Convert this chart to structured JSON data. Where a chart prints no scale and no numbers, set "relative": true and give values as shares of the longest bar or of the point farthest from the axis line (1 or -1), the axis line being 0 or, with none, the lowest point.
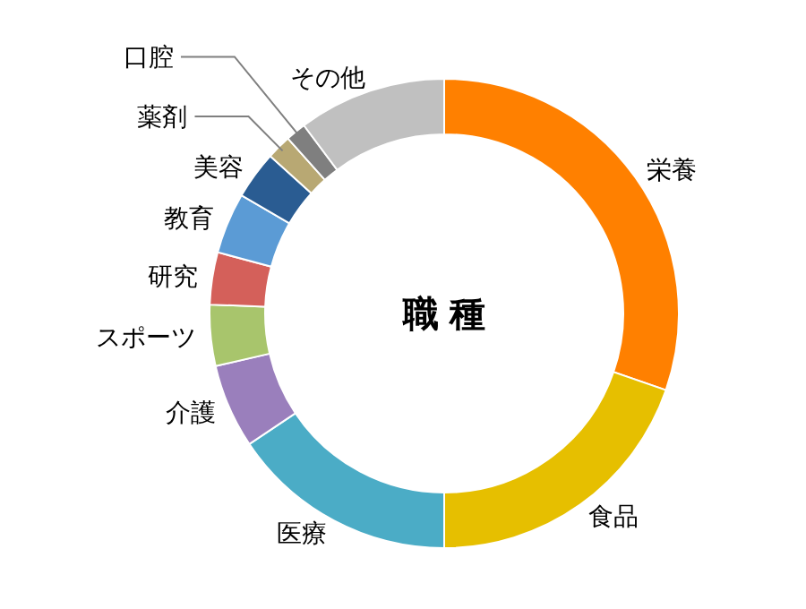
{
  "chart_data": {
    "type": "donut",
    "title": "職 種",
    "categories": [
      "栄養",
      "食品",
      "医療",
      "介護",
      "スポーツ",
      "研究",
      "教育",
      "美容",
      "薬剤",
      "口腔",
      "その他"
    ],
    "values": [
      30.3,
      19.7,
      15.6,
      5.8,
      4.2,
      3.6,
      4.2,
      3.3,
      1.7,
      1.4,
      10.2
    ],
    "colors": [
      "#ff8000",
      "#e6bf00",
      "#4bacc6",
      "#9a7fbc",
      "#a8c56c",
      "#d4605a",
      "#5b9bd5",
      "#2a5c92",
      "#b8a873",
      "#7f7f7f",
      "#c0c0c0"
    ],
    "relative": true
  }
}
